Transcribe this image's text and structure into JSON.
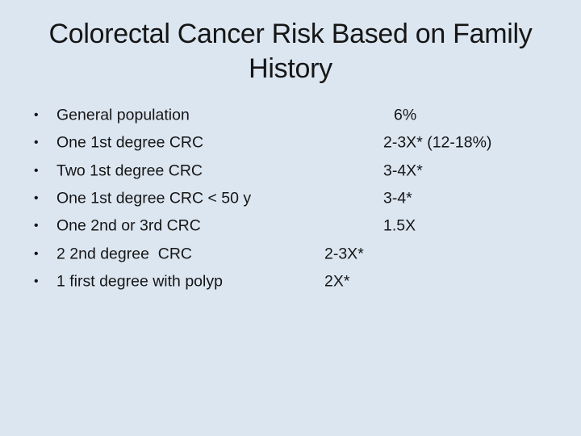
{
  "slide": {
    "title_line1": "Colorectal Cancer Risk Based on Family",
    "title_line2": "History",
    "background_color": "#dce6f1",
    "text_color": "#161616"
  },
  "list": {
    "bullet": "•",
    "rows": [
      {
        "label": "General population",
        "value": "6%"
      },
      {
        "label": "One 1st degree CRC",
        "value": "2-3X* (12-18%)"
      },
      {
        "label": "Two 1st degree CRC",
        "value": "3-4X*"
      },
      {
        "label": "One 1st degree CRC < 50 y",
        "value": "3-4*"
      },
      {
        "label": "One 2nd or 3rd CRC",
        "value": "1.5X"
      },
      {
        "label": "2 2nd degree  CRC",
        "value": "2-3X*"
      },
      {
        "label": "1 first degree with polyp",
        "value": "2X*"
      }
    ]
  }
}
